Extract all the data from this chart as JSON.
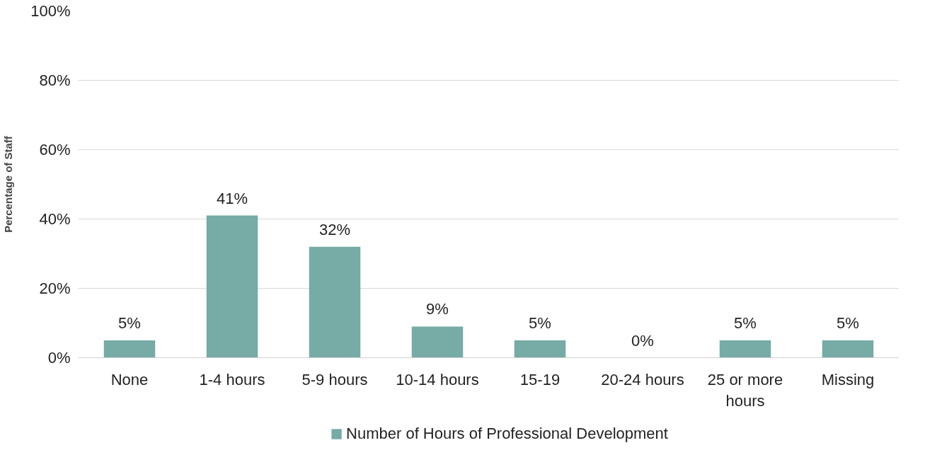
{
  "chart_data": {
    "type": "bar",
    "categories": [
      "None",
      "1-4 hours",
      "5-9 hours",
      "10-14 hours",
      "15-19",
      "20-24 hours",
      "25 or more hours",
      "Missing"
    ],
    "series": [
      {
        "name": "Number of Hours of Professional Development",
        "color": "#76aba6",
        "values": [
          5,
          41,
          32,
          9,
          5,
          0,
          5,
          5
        ],
        "value_labels": [
          "5%",
          "41%",
          "32%",
          "9%",
          "5%",
          "0%",
          "5%",
          "5%"
        ]
      }
    ],
    "ylabel": "Percentage of Staff",
    "ylim": [
      0,
      100
    ],
    "yticks": [
      {
        "value": 0,
        "label": "0%"
      },
      {
        "value": 20,
        "label": "20%"
      },
      {
        "value": 40,
        "label": "40%"
      },
      {
        "value": 60,
        "label": "60%"
      },
      {
        "value": 80,
        "label": "80%"
      },
      {
        "value": 100,
        "label": "100%"
      }
    ],
    "grid": "y",
    "legend": "bottom"
  }
}
